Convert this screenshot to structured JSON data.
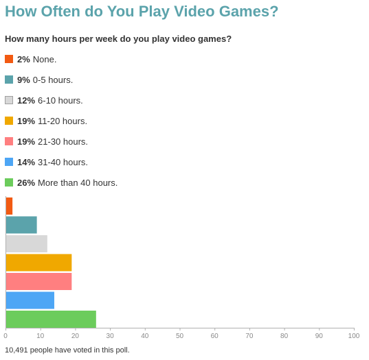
{
  "title": "How Often do You Play Video Games?",
  "question": "How many hours per week do you play video games?",
  "footer": "10,491 people have voted in this poll.",
  "chart_data": {
    "type": "bar",
    "orientation": "horizontal",
    "categories": [
      "None.",
      "0-5 hours.",
      "6-10 hours.",
      "11-20 hours.",
      "21-30 hours.",
      "31-40 hours.",
      "More than 40 hours."
    ],
    "percent_labels": [
      "2%",
      "9%",
      "12%",
      "19%",
      "19%",
      "14%",
      "26%"
    ],
    "values": [
      2,
      9,
      12,
      19,
      19,
      14,
      26
    ],
    "colors": [
      "#f25a12",
      "#5ba3ab",
      "#d8d8d8",
      "#f0a800",
      "#ff7f80",
      "#4da6f5",
      "#6ccc5c"
    ],
    "xlim": [
      0,
      100
    ],
    "xticks": [
      "0",
      "10",
      "20",
      "30",
      "40",
      "50",
      "60",
      "70",
      "80",
      "90",
      "100"
    ],
    "grid": false,
    "legend": "top"
  }
}
